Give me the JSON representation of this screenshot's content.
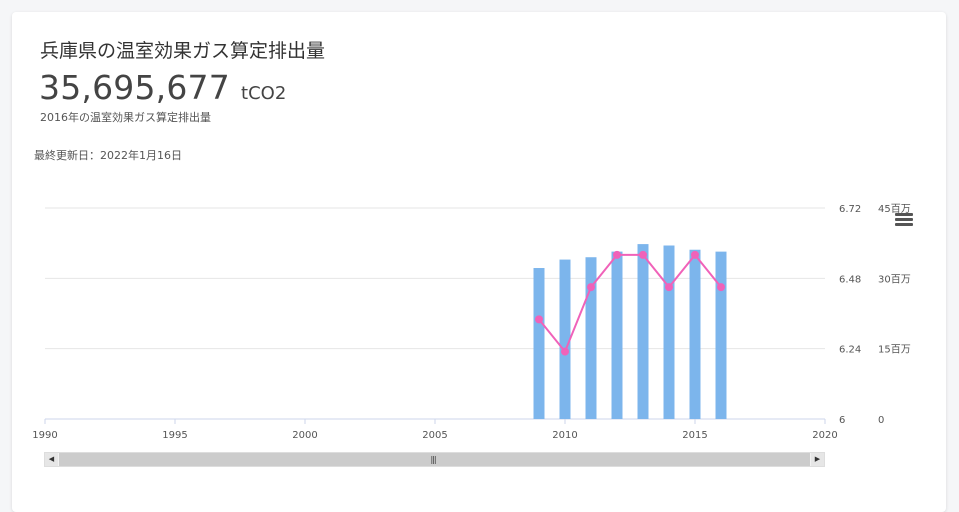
{
  "card": {
    "title": "兵庫県の温室効果ガス算定排出量",
    "value": "35,695,677",
    "unit": "tCO2",
    "subtitle": "2016年の温室効果ガス算定排出量",
    "updated": "最終更新日：2022年1月16日"
  },
  "chart_data": {
    "type": "bar",
    "x": [
      2009,
      2010,
      2011,
      2012,
      2013,
      2014,
      2015,
      2016
    ],
    "xlim": [
      1990,
      2020
    ],
    "x_ticks": [
      "1990",
      "1995",
      "2000",
      "2005",
      "2010",
      "2015",
      "2020"
    ],
    "series": [
      {
        "type": "bar",
        "axis": "right",
        "color": "#7cb5ec",
        "values": [
          32200000,
          34000000,
          34500000,
          35700000,
          37300000,
          37000000,
          36100000,
          35695677
        ]
      },
      {
        "type": "line",
        "axis": "left",
        "color": "#f062b9",
        "values": [
          6.34,
          6.23,
          6.45,
          6.56,
          6.56,
          6.45,
          6.56,
          6.45
        ]
      }
    ],
    "y_left": {
      "ylim": [
        6,
        6.72
      ],
      "ticks": [
        "6",
        "6.24",
        "6.48",
        "6.72"
      ]
    },
    "y_right": {
      "ylim": [
        0,
        45000000
      ],
      "ticks": [
        "0",
        "15百万",
        "30百万",
        "45百万"
      ]
    },
    "grid": true,
    "legend": "none"
  },
  "icons": {
    "menu": "hamburger-menu-icon",
    "scroll_left": "arrow-left-icon",
    "scroll_right": "arrow-right-icon"
  }
}
